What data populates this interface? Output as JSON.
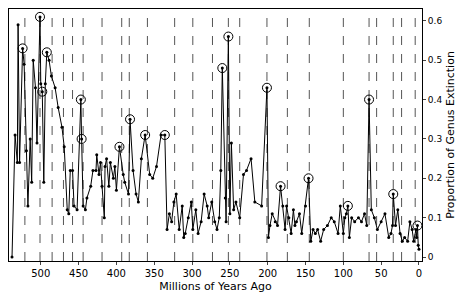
{
  "chart_data": {
    "type": "line",
    "x_label": "Millions of Years Ago",
    "y_label": "Proportion of Genus Extinction",
    "x": [
      538,
      534,
      531,
      530,
      528,
      524,
      522,
      519,
      517,
      514,
      512,
      510,
      507,
      505,
      501,
      500,
      498,
      496,
      494,
      492,
      489,
      486,
      481,
      477,
      472,
      469,
      465,
      463,
      461,
      458,
      456,
      452,
      447,
      446,
      444,
      441,
      439,
      434,
      431,
      427,
      426,
      423,
      421,
      419,
      416,
      415,
      413,
      410,
      408,
      404,
      402,
      400,
      396,
      391,
      389,
      384,
      382,
      378,
      374,
      371,
      367,
      362,
      356,
      352,
      347,
      341,
      336,
      333,
      330,
      327,
      324,
      321,
      317,
      313,
      311,
      309,
      305,
      301,
      299,
      295,
      292,
      288,
      284,
      280,
      278,
      274,
      270,
      267,
      264,
      262,
      260,
      256,
      255,
      252,
      250,
      248,
      245,
      242,
      237,
      232,
      228,
      222,
      217,
      208,
      201,
      199,
      197,
      194,
      190,
      187,
      183,
      180,
      177,
      175,
      172,
      169,
      166,
      164,
      162,
      158,
      155,
      150,
      146,
      143,
      140,
      137,
      134,
      130,
      126,
      121,
      116,
      112,
      107,
      104,
      100,
      98,
      96,
      94,
      92,
      89,
      85,
      80,
      76,
      72,
      69,
      66,
      63,
      59,
      55,
      50,
      45,
      40,
      37,
      35,
      34,
      31,
      28,
      25,
      22,
      19,
      15,
      12,
      9,
      7,
      4,
      3,
      2,
      1,
      0
    ],
    "values": [
      0,
      0.31,
      0.24,
      0.59,
      0.24,
      0.53,
      0.49,
      0.27,
      0.13,
      0.3,
      0.19,
      0.5,
      0.43,
      0.29,
      0.61,
      0.44,
      0.42,
      0.19,
      0.44,
      0.52,
      0.5,
      0.46,
      0.43,
      0.38,
      0.33,
      0.28,
      0.12,
      0.11,
      0.22,
      0.22,
      0.13,
      0.12,
      0.4,
      0.3,
      0.13,
      0.12,
      0.15,
      0.18,
      0.22,
      0.22,
      0.26,
      0.21,
      0.24,
      0.18,
      0.1,
      0.23,
      0.25,
      0.18,
      0.24,
      0.2,
      0.23,
      0.17,
      0.28,
      0.21,
      0.19,
      0.16,
      0.35,
      0.22,
      0.16,
      0.14,
      0.25,
      0.31,
      0.21,
      0.2,
      0.23,
      0.31,
      0.31,
      0.07,
      0.11,
      0.09,
      0.14,
      0.16,
      0.07,
      0.13,
      0.05,
      0.06,
      0.1,
      0.14,
      0.07,
      0.12,
      0.06,
      0.09,
      0.16,
      0.13,
      0.1,
      0.14,
      0.09,
      0.07,
      0.1,
      0.22,
      0.48,
      0.15,
      0.09,
      0.56,
      0.11,
      0.29,
      0.12,
      0.14,
      0.1,
      0.21,
      0.22,
      0.25,
      0.14,
      0.13,
      0.43,
      0.05,
      0.08,
      0.11,
      0.09,
      0.08,
      0.18,
      0.13,
      0.07,
      0.13,
      0.1,
      0.06,
      0.12,
      0.08,
      0.09,
      0.11,
      0.06,
      0.13,
      0.2,
      0.04,
      0.07,
      0.06,
      0.07,
      0.04,
      0.07,
      0.08,
      0.1,
      0.09,
      0.06,
      0.13,
      0.06,
      0.1,
      0.11,
      0.13,
      0.05,
      0.1,
      0.09,
      0.1,
      0.09,
      0.11,
      0.08,
      0.4,
      0.12,
      0.1,
      0.07,
      0.09,
      0.11,
      0.05,
      0.06,
      0.08,
      0.16,
      0.08,
      0.12,
      0.06,
      0.04,
      0.05,
      0.04,
      0.09,
      0.07,
      0.04,
      0.07,
      0.05,
      0.08,
      0.03,
      0.02
    ],
    "circled": [
      524,
      501,
      498,
      492,
      447,
      446,
      396,
      382,
      362,
      336,
      260,
      252,
      201,
      183,
      146,
      94,
      66,
      34,
      2
    ],
    "boundaries": [
      521,
      501,
      485,
      470,
      458,
      444,
      419,
      393,
      383,
      359,
      323,
      299,
      273,
      252,
      237,
      201,
      174,
      145,
      100,
      66,
      56,
      34,
      23,
      5
    ],
    "xlim": [
      542,
      -4
    ],
    "xticks": [
      500,
      450,
      400,
      350,
      300,
      250,
      200,
      150,
      100,
      50,
      0
    ],
    "ylim": [
      -0.01,
      0.63
    ],
    "yticks": [
      0,
      0.1,
      0.2,
      0.3,
      0.4,
      0.5,
      0.6
    ],
    "grid": false,
    "color": "#000000",
    "marker": "circle",
    "line_style": "solid"
  }
}
